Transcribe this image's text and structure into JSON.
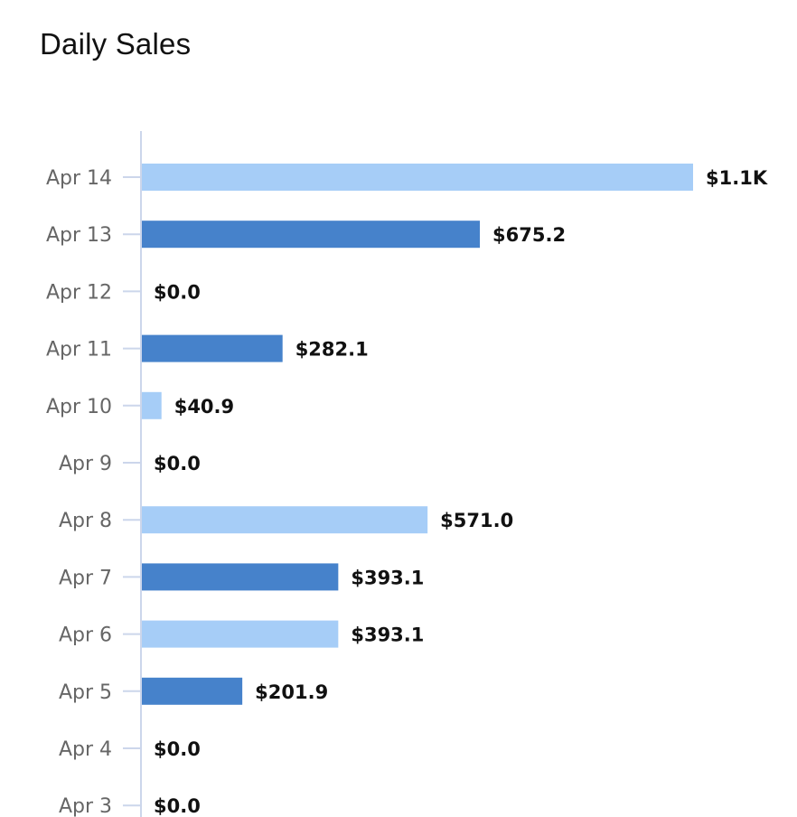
{
  "title": "Daily Sales",
  "colors": {
    "bar_dark": "#4682cb",
    "bar_light": "#a6cdf7",
    "axis": "#ccd6eb",
    "tick_text": "#666666",
    "value_text": "#111111"
  },
  "chart_data": {
    "type": "bar",
    "orientation": "horizontal",
    "title": "Daily Sales",
    "categories": [
      "Apr 14",
      "Apr 13",
      "Apr 12",
      "Apr 11",
      "Apr 10",
      "Apr 9",
      "Apr 8",
      "Apr 7",
      "Apr 6",
      "Apr 5",
      "Apr 4",
      "Apr 3"
    ],
    "values": [
      1100,
      675.2,
      0,
      282.1,
      40.9,
      0,
      571.0,
      393.1,
      393.1,
      201.9,
      0,
      0
    ],
    "value_labels": [
      "$1.1K",
      "$675.2",
      "$0.0",
      "$282.1",
      "$40.9",
      "$0.0",
      "$571.0",
      "$393.1",
      "$393.1",
      "$201.9",
      "$0.0",
      "$0.0"
    ],
    "bar_shades": [
      "light",
      "dark",
      "dark",
      "dark",
      "light",
      "light",
      "light",
      "dark",
      "light",
      "dark",
      "dark",
      "light"
    ],
    "xlim": [
      0,
      1100
    ],
    "grid": false,
    "legend": "none"
  }
}
